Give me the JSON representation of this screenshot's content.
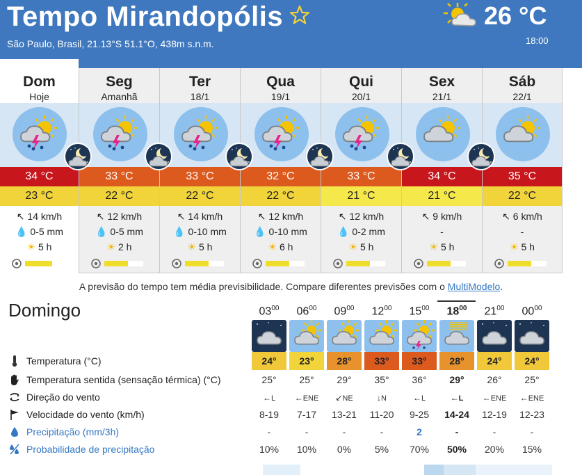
{
  "header": {
    "title": "Tempo Mirandopólis",
    "subtitle": "São Paulo, Brasil, 21.13°S 51.1°O, 438m s.n.m.",
    "current_temp": "26 °C",
    "current_time": "18:00",
    "favorite_icon": "star-icon",
    "current_icon": "sun-cloud-icon"
  },
  "days": [
    {
      "name": "Dom",
      "date": "Hoje",
      "tmax": "34 °C",
      "tmin": "23 °C",
      "wind": "14 km/h",
      "rain": "0-5 mm",
      "sun": "5 h",
      "predictability": 0.7,
      "storm": true,
      "active": true,
      "tmax_color": "#c8161d",
      "tmin_color": "#f0d43a"
    },
    {
      "name": "Seg",
      "date": "Amanhã",
      "tmax": "33 °C",
      "tmin": "22 °C",
      "wind": "12 km/h",
      "rain": "0-5 mm",
      "sun": "2 h",
      "predictability": 0.6,
      "storm": true,
      "active": false,
      "tmax_color": "#dc5a1e",
      "tmin_color": "#f0d43a"
    },
    {
      "name": "Ter",
      "date": "18/1",
      "tmax": "33 °C",
      "tmin": "22 °C",
      "wind": "14 km/h",
      "rain": "0-10 mm",
      "sun": "5 h",
      "predictability": 0.6,
      "storm": true,
      "active": false,
      "tmax_color": "#dc5a1e",
      "tmin_color": "#f0d43a"
    },
    {
      "name": "Qua",
      "date": "19/1",
      "tmax": "32 °C",
      "tmin": "22 °C",
      "wind": "12 km/h",
      "rain": "0-10 mm",
      "sun": "6 h",
      "predictability": 0.6,
      "storm": true,
      "active": false,
      "tmax_color": "#dc5a1e",
      "tmin_color": "#f0d43a"
    },
    {
      "name": "Qui",
      "date": "20/1",
      "tmax": "33 °C",
      "tmin": "21 °C",
      "wind": "12 km/h",
      "rain": "0-2 mm",
      "sun": "5 h",
      "predictability": 0.6,
      "storm": true,
      "active": false,
      "tmax_color": "#dc5a1e",
      "tmin_color": "#f5e84a"
    },
    {
      "name": "Sex",
      "date": "21/1",
      "tmax": "34 °C",
      "tmin": "21 °C",
      "wind": "9 km/h",
      "rain": "-",
      "sun": "5 h",
      "predictability": 0.6,
      "storm": false,
      "active": false,
      "tmax_color": "#c8161d",
      "tmin_color": "#f5e84a"
    },
    {
      "name": "Sáb",
      "date": "22/1",
      "tmax": "35 °C",
      "tmin": "22 °C",
      "wind": "6 km/h",
      "rain": "-",
      "sun": "5 h",
      "predictability": 0.6,
      "storm": false,
      "active": false,
      "tmax_color": "#c8161d",
      "tmin_color": "#f0d43a"
    }
  ],
  "note": {
    "text": "A previsão do tempo tem média previsibilidade. Compare diferentes previsões com o ",
    "link": "MultiModelo",
    "end": "."
  },
  "hourly": {
    "title": "Domingo",
    "hours": [
      "03",
      "06",
      "09",
      "12",
      "15",
      "18",
      "21",
      "00"
    ],
    "hour_suffix": "00",
    "selected_index": 5,
    "temps": [
      "24°",
      "23°",
      "28°",
      "33°",
      "33°",
      "28°",
      "24°",
      "24°"
    ],
    "temp_colors": [
      "#f0c83a",
      "#f0d43a",
      "#e8922e",
      "#dc5a1e",
      "#dc5a1e",
      "#e8922e",
      "#f0c83a",
      "#f0c83a"
    ],
    "rows": {
      "temperature": {
        "label": "Temperatura (°C)"
      },
      "feels": {
        "label": "Temperatura sentida (sensação térmica) (°C)",
        "values": [
          "25°",
          "25°",
          "29°",
          "35°",
          "36°",
          "29°",
          "26°",
          "25°"
        ]
      },
      "wind_dir": {
        "label": "Direção do vento",
        "values": [
          "L",
          "ENE",
          "NE",
          "N",
          "L",
          "L",
          "ENE",
          "ENE"
        ]
      },
      "wind_speed": {
        "label": "Velocidade do vento (km/h)",
        "values": [
          "8-19",
          "7-17",
          "13-21",
          "11-20",
          "9-25",
          "14-24",
          "12-19",
          "12-23"
        ]
      },
      "precip": {
        "label": "Precipitação (mm/3h)",
        "values": [
          "-",
          "-",
          "-",
          "-",
          "2",
          "-",
          "-",
          "-"
        ]
      },
      "precip_prob": {
        "label": "Probabilidade de precipitação",
        "values": [
          "10%",
          "10%",
          "0%",
          "5%",
          "70%",
          "50%",
          "20%",
          "15%"
        ]
      }
    }
  }
}
